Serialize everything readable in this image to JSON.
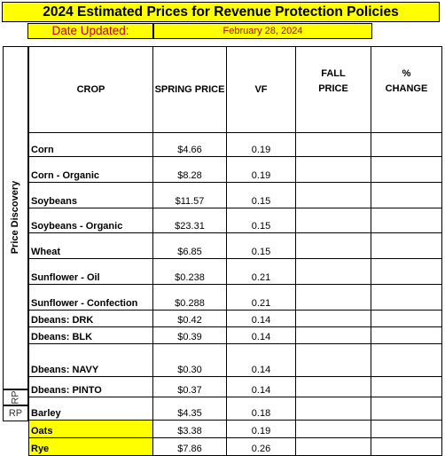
{
  "title": "2024 Estimated Prices for Revenue Protection Policies",
  "date_label": "Date Updated:",
  "date_value": "February 28, 2024",
  "side_label": "Price Discovery",
  "rp_label": "RP",
  "headers": {
    "crop": "CROP",
    "spring_price": "SPRING PRICE",
    "vf": "VF",
    "fall_price": [
      "FALL",
      "PRICE"
    ],
    "pct_change": [
      "%",
      "CHANGE"
    ]
  },
  "rows": [
    {
      "crop": "Corn",
      "spring_price": "$4.66",
      "vf": "0.19",
      "fall_price": "",
      "pct_change": ""
    },
    {
      "crop": "Corn - Organic",
      "spring_price": "$8.28",
      "vf": "0.19",
      "fall_price": "",
      "pct_change": ""
    },
    {
      "crop": "Soybeans",
      "spring_price": "$11.57",
      "vf": "0.15",
      "fall_price": "",
      "pct_change": ""
    },
    {
      "crop": "Soybeans - Organic",
      "spring_price": "$23.31",
      "vf": "0.15",
      "fall_price": "",
      "pct_change": ""
    },
    {
      "crop": "Wheat",
      "spring_price": "$6.85",
      "vf": "0.15",
      "fall_price": "",
      "pct_change": ""
    },
    {
      "crop": "Sunflower - Oil",
      "spring_price": "$0.238",
      "vf": "0.21",
      "fall_price": "",
      "pct_change": ""
    },
    {
      "crop": "Sunflower - Confection",
      "spring_price": "$0.288",
      "vf": "0.21",
      "fall_price": "",
      "pct_change": ""
    },
    {
      "crop": "Dbeans: DRK",
      "spring_price": "$0.42",
      "vf": "0.14",
      "fall_price": "",
      "pct_change": ""
    },
    {
      "crop": "Dbeans: BLK",
      "spring_price": "$0.39",
      "vf": "0.14",
      "fall_price": "",
      "pct_change": ""
    },
    {
      "crop": "Dbeans: NAVY",
      "spring_price": "$0.30",
      "vf": "0.14",
      "fall_price": "",
      "pct_change": ""
    },
    {
      "crop": "Dbeans: PINTO",
      "spring_price": "$0.37",
      "vf": "0.14",
      "fall_price": "",
      "pct_change": ""
    },
    {
      "crop": "Barley",
      "spring_price": "$4.35",
      "vf": "0.18",
      "fall_price": "",
      "pct_change": ""
    },
    {
      "crop": "Oats",
      "spring_price": "$3.38",
      "vf": "0.19",
      "fall_price": "",
      "pct_change": ""
    },
    {
      "crop": "Rye",
      "spring_price": "$7.86",
      "vf": "0.26",
      "fall_price": "",
      "pct_change": ""
    }
  ]
}
